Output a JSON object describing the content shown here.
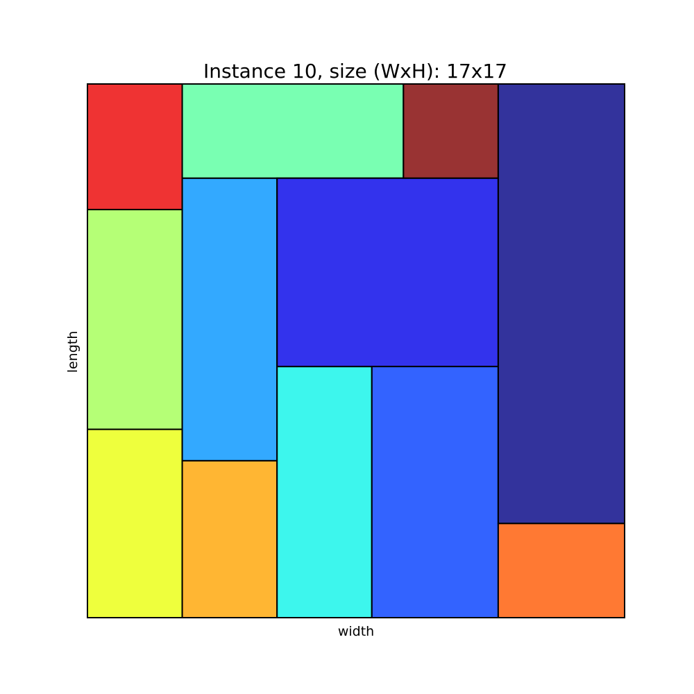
{
  "chart_data": {
    "type": "rectangle-packing",
    "title": "Instance 10, size (WxH): 17x17",
    "xlabel": "width",
    "ylabel": "length",
    "container": {
      "width": 17,
      "height": 17
    },
    "xlim": [
      0,
      17
    ],
    "ylim": [
      0,
      17
    ],
    "grid": false,
    "ticks": false,
    "rectangles": [
      {
        "id": "yellow",
        "x": 0,
        "y": 0,
        "w": 3,
        "h": 6,
        "color": "#eaff0d"
      },
      {
        "id": "light-green",
        "x": 0,
        "y": 6,
        "w": 3,
        "h": 7,
        "color": "#a2ff54"
      },
      {
        "id": "red",
        "x": 0,
        "y": 13,
        "w": 3,
        "h": 4,
        "color": "#eb0000"
      },
      {
        "id": "orange",
        "x": 3,
        "y": 0,
        "w": 3,
        "h": 5,
        "color": "#ffa400"
      },
      {
        "id": "sky-blue",
        "x": 3,
        "y": 5,
        "w": 3,
        "h": 9,
        "color": "#0094ff"
      },
      {
        "id": "mint",
        "x": 3,
        "y": 14,
        "w": 7,
        "h": 3,
        "color": "#58ff9f"
      },
      {
        "id": "cyan",
        "x": 6,
        "y": 0,
        "w": 3,
        "h": 8,
        "color": "#0cf4e9"
      },
      {
        "id": "blue",
        "x": 6,
        "y": 8,
        "w": 7,
        "h": 6,
        "color": "#0000e9"
      },
      {
        "id": "royal-blue",
        "x": 9,
        "y": 0,
        "w": 4,
        "h": 8,
        "color": "#003cff"
      },
      {
        "id": "dark-red",
        "x": 10,
        "y": 14,
        "w": 3,
        "h": 3,
        "color": "#800000"
      },
      {
        "id": "navy",
        "x": 13,
        "y": 3,
        "w": 4,
        "h": 14,
        "color": "#000083"
      },
      {
        "id": "orange-red",
        "x": 13,
        "y": 0,
        "w": 4,
        "h": 3,
        "color": "#ff5800"
      }
    ]
  }
}
